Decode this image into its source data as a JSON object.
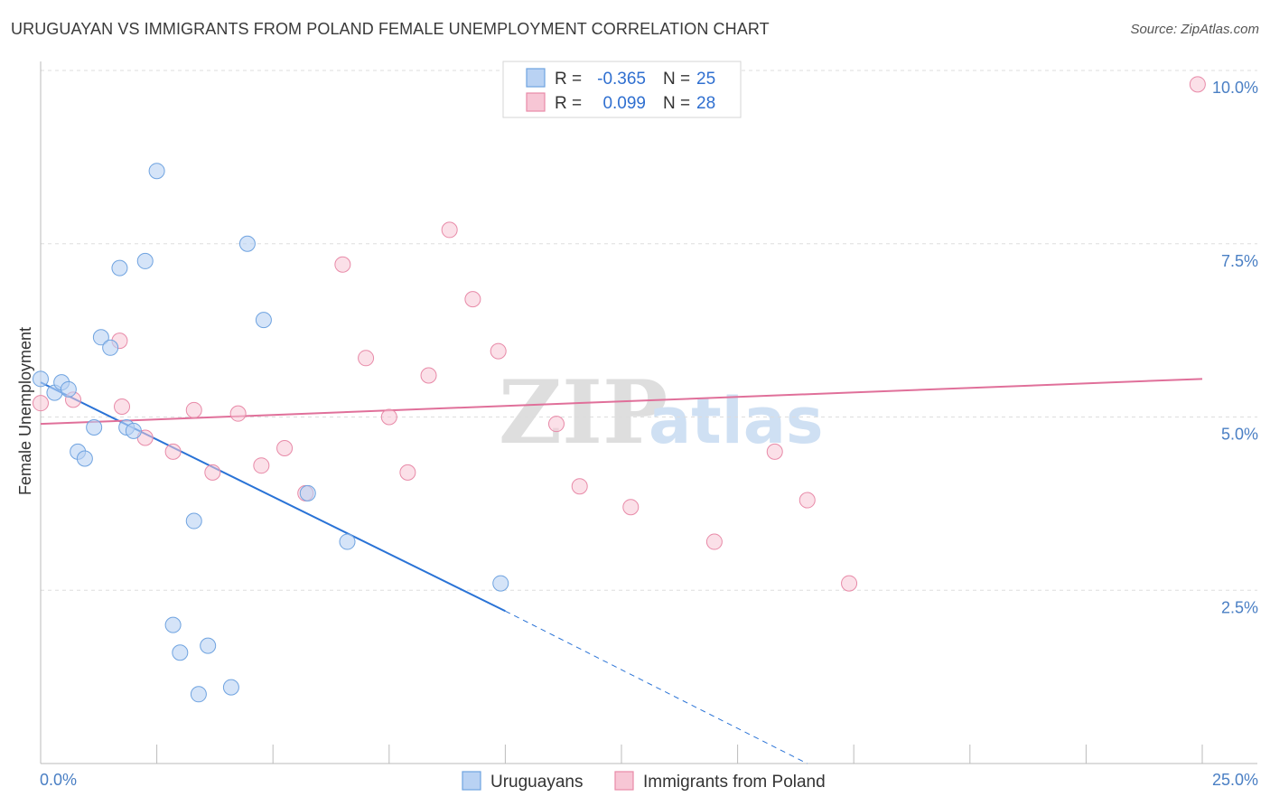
{
  "title": "URUGUAYAN VS IMMIGRANTS FROM POLAND FEMALE UNEMPLOYMENT CORRELATION CHART",
  "source": "Source: ZipAtlas.com",
  "watermark": {
    "zip": "ZIP",
    "atlas": "atlas"
  },
  "colors": {
    "blue": "#6fa3e0",
    "blue_fill": "#b9d2f3",
    "blue_line": "#2a73d6",
    "pink": "#e88aa8",
    "pink_fill": "#f7c6d5",
    "pink_line": "#e0709a",
    "tick": "#4a7fc4"
  },
  "legend": {
    "rows": [
      {
        "r_label": "R =",
        "r_value": "-0.365",
        "n_label": "N =",
        "n_value": "25"
      },
      {
        "r_label": "R =",
        "r_value": "0.099",
        "n_label": "N =",
        "n_value": "28"
      }
    ]
  },
  "bottom_legend": [
    "Uruguayans",
    "Immigrants from Poland"
  ],
  "chart_data": {
    "type": "scatter",
    "title": "URUGUAYAN VS IMMIGRANTS FROM POLAND FEMALE UNEMPLOYMENT CORRELATION CHART",
    "xlabel": "",
    "ylabel": "Female Unemployment",
    "xlim": [
      0,
      25
    ],
    "ylim": [
      0,
      10
    ],
    "x_tick_labels": [
      "0.0%",
      "25.0%"
    ],
    "y_ticks": [
      2.5,
      5.0,
      7.5,
      10.0
    ],
    "y_tick_labels": [
      "2.5%",
      "5.0%",
      "7.5%",
      "10.0%"
    ],
    "series": [
      {
        "name": "Uruguayans",
        "r": -0.365,
        "n": 25,
        "points": [
          [
            0.0,
            5.55
          ],
          [
            0.3,
            5.35
          ],
          [
            0.45,
            5.5
          ],
          [
            0.6,
            5.4
          ],
          [
            0.8,
            4.5
          ],
          [
            0.95,
            4.4
          ],
          [
            1.15,
            4.85
          ],
          [
            1.3,
            6.15
          ],
          [
            1.5,
            6.0
          ],
          [
            1.7,
            7.15
          ],
          [
            1.85,
            4.85
          ],
          [
            2.0,
            4.8
          ],
          [
            2.25,
            7.25
          ],
          [
            2.5,
            8.55
          ],
          [
            2.85,
            2.0
          ],
          [
            3.0,
            1.6
          ],
          [
            3.3,
            3.5
          ],
          [
            3.4,
            1.0
          ],
          [
            3.6,
            1.7
          ],
          [
            4.1,
            1.1
          ],
          [
            4.45,
            7.5
          ],
          [
            4.8,
            6.4
          ],
          [
            5.75,
            3.9
          ],
          [
            6.6,
            3.2
          ],
          [
            9.9,
            2.6
          ]
        ],
        "trend": {
          "x0": 0.0,
          "y0": 5.5,
          "x1": 10.0,
          "y1": 2.2,
          "dashed_to_x": 16.5,
          "dashed_to_y": 0.0
        }
      },
      {
        "name": "Immigrants from Poland",
        "r": 0.099,
        "n": 28,
        "points": [
          [
            0.0,
            5.2
          ],
          [
            0.7,
            5.25
          ],
          [
            1.7,
            6.1
          ],
          [
            1.75,
            5.15
          ],
          [
            2.25,
            4.7
          ],
          [
            2.85,
            4.5
          ],
          [
            3.3,
            5.1
          ],
          [
            3.7,
            4.2
          ],
          [
            4.25,
            5.05
          ],
          [
            4.75,
            4.3
          ],
          [
            5.25,
            4.55
          ],
          [
            5.7,
            3.9
          ],
          [
            6.5,
            7.2
          ],
          [
            7.0,
            5.85
          ],
          [
            7.5,
            5.0
          ],
          [
            7.9,
            4.2
          ],
          [
            8.35,
            5.6
          ],
          [
            8.8,
            7.7
          ],
          [
            9.3,
            6.7
          ],
          [
            9.85,
            5.95
          ],
          [
            11.1,
            4.9
          ],
          [
            11.6,
            4.0
          ],
          [
            12.7,
            3.7
          ],
          [
            14.5,
            3.2
          ],
          [
            15.8,
            4.5
          ],
          [
            16.5,
            3.8
          ],
          [
            17.4,
            2.6
          ],
          [
            24.9,
            9.8
          ]
        ],
        "trend": {
          "x0": 0.0,
          "y0": 4.9,
          "x1": 25.0,
          "y1": 5.55
        }
      }
    ]
  }
}
